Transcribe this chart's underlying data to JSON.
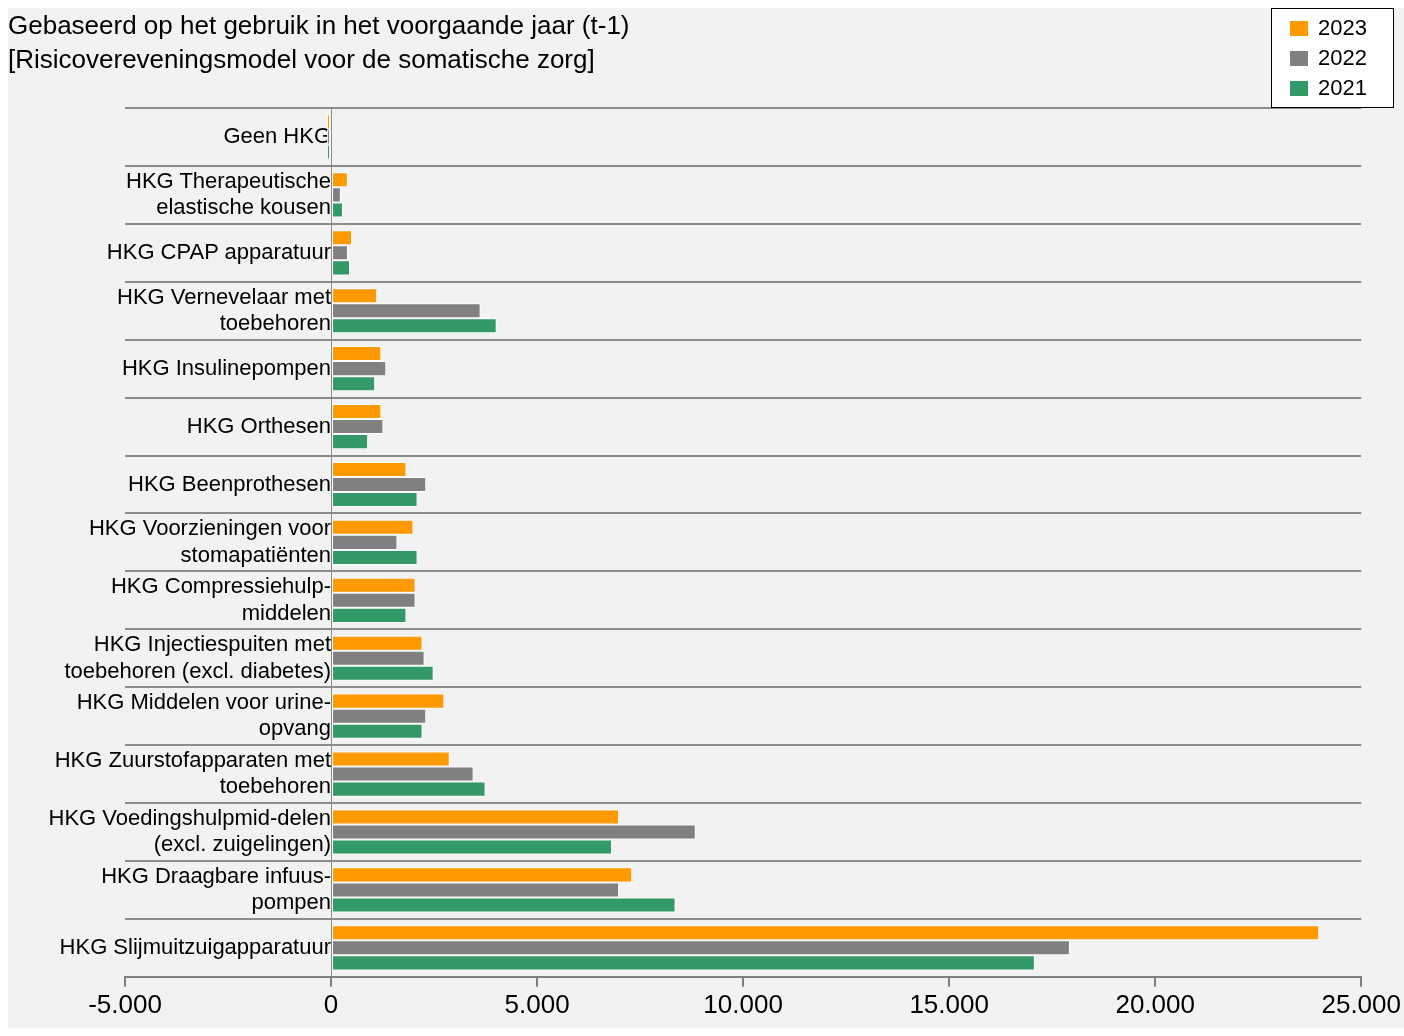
{
  "chart_data": {
    "type": "bar",
    "orientation": "horizontal",
    "subtitle": "Gebaseerd op het gebruik in het voorgaande jaar (t-1)\n[Risicovereveningsmodel voor de somatische zorg]",
    "categories": [
      "Geen HKG",
      "HKG Therapeutische elastische kousen",
      "HKG CPAP apparatuur",
      "HKG Vernevelaar met toebehoren",
      "HKG Insulinepompen",
      "HKG Orthesen",
      "HKG Beenprothesen",
      "HKG Voorzieningen voor stomapatiënten",
      "HKG Compressiehulp-middelen",
      "HKG Injectiespuiten met toebehoren (excl. diabetes)",
      "HKG Middelen voor urine-opvang",
      "HKG Zuurstofapparaten met toebehoren",
      "HKG Voedingshulpmid-delen (excl. zuigelingen)",
      "HKG Draagbare infuus-pompen",
      "HKG Slijmuitzuigapparatuur"
    ],
    "series": [
      {
        "name": "2023",
        "color": "#ff9900",
        "values": [
          -100,
          410,
          510,
          1120,
          1220,
          1220,
          1830,
          2000,
          2050,
          2220,
          2750,
          2880,
          6990,
          7310,
          23980
        ]
      },
      {
        "name": "2022",
        "color": "#808080",
        "values": [
          -100,
          240,
          410,
          3630,
          1340,
          1270,
          2310,
          1610,
          2050,
          2270,
          2310,
          3460,
          8850,
          6990,
          17930
        ]
      },
      {
        "name": "2021",
        "color": "#339966",
        "values": [
          -100,
          290,
          460,
          4020,
          1070,
          900,
          2100,
          2100,
          1830,
          2490,
          2220,
          3750,
          6820,
          8360,
          17080
        ]
      }
    ],
    "xlim": [
      -5000,
      25000
    ],
    "xticks": [
      {
        "value": -5000,
        "label": "-5.000"
      },
      0,
      {
        "value": 5000,
        "label": "5.000"
      },
      {
        "value": 10000,
        "label": "10.000"
      },
      {
        "value": 15000,
        "label": "15.000"
      },
      {
        "value": 20000,
        "label": "20.000"
      },
      {
        "value": 25000,
        "label": "25.000"
      }
    ],
    "grid": "y",
    "legend": "top right"
  }
}
